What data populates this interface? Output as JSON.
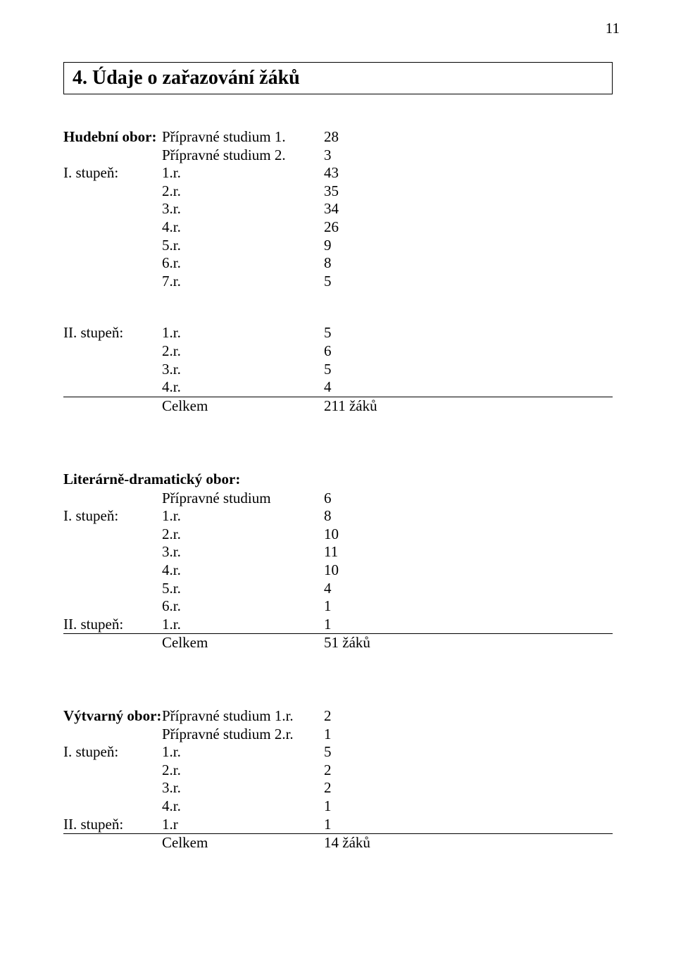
{
  "page_number": "11",
  "title": "4. Údaje o zařazování žáků",
  "sections": [
    {
      "heading_col_a": "Hudební obor:",
      "groups": [
        {
          "rule_before": false,
          "rule_after": false,
          "rows": [
            {
              "a": "",
              "b": "Přípravné studium 1.",
              "c": "28"
            },
            {
              "a": "",
              "b": "Přípravné studium 2.",
              "c": "3"
            },
            {
              "a": "I. stupeň:",
              "b": "1.r.",
              "c": "43"
            },
            {
              "a": "",
              "b": "2.r.",
              "c": "35"
            },
            {
              "a": "",
              "b": "3.r.",
              "c": "34"
            },
            {
              "a": "",
              "b": "4.r.",
              "c": "26"
            },
            {
              "a": "",
              "b": "5.r.",
              "c": "9"
            },
            {
              "a": "",
              "b": "6.r.",
              "c": "8"
            },
            {
              "a": "",
              "b": "7.r.",
              "c": "5"
            }
          ]
        },
        {
          "rule_before": false,
          "rule_after": true,
          "spacer_before": "lg",
          "rows": [
            {
              "a": "II. stupeň:",
              "b": "1.r.",
              "c": "5"
            },
            {
              "a": "",
              "b": "2.r.",
              "c": "6"
            },
            {
              "a": "",
              "b": "3.r.",
              "c": "5"
            },
            {
              "a": "",
              "b": "4.r.",
              "c": "4"
            }
          ]
        },
        {
          "rule_before": false,
          "rule_after": false,
          "rows": [
            {
              "a": "",
              "b": "Celkem",
              "c": "211 žáků"
            }
          ]
        }
      ]
    },
    {
      "heading_col_a": "Literárně-dramatický obor:",
      "heading_full_width": true,
      "spacer_before": "lg",
      "groups": [
        {
          "rule_before": false,
          "rule_after": true,
          "rows": [
            {
              "a": "",
              "b": "Přípravné studium",
              "c": "6"
            },
            {
              "a": "I. stupeň:",
              "b": "1.r.",
              "c": "8"
            },
            {
              "a": "",
              "b": "2.r.",
              "c": "10"
            },
            {
              "a": "",
              "b": "3.r.",
              "c": "11"
            },
            {
              "a": "",
              "b": "4.r.",
              "c": "10"
            },
            {
              "a": "",
              "b": "5.r.",
              "c": "4"
            },
            {
              "a": "",
              "b": "6.r.",
              "c": "1"
            },
            {
              "a": "II. stupeň:",
              "b": "1.r.",
              "c": "1"
            }
          ]
        },
        {
          "rule_before": false,
          "rule_after": false,
          "rows": [
            {
              "a": "",
              "b": "Celkem",
              "c": "51 žáků"
            }
          ]
        }
      ]
    },
    {
      "heading_col_a": "Výtvarný obor:",
      "spacer_before": "lg",
      "groups": [
        {
          "rule_before": false,
          "rule_after": true,
          "rows": [
            {
              "a": "",
              "b": "Přípravné studium 1.r.",
              "c": "2"
            },
            {
              "a": "",
              "b": "Přípravné studium 2.r.",
              "c": "1"
            },
            {
              "a": "I. stupeň:",
              "b": "1.r.",
              "c": "5"
            },
            {
              "a": "",
              "b": "2.r.",
              "c": "2"
            },
            {
              "a": "",
              "b": "3.r.",
              "c": "2"
            },
            {
              "a": "",
              "b": "4.r.",
              "c": "1"
            },
            {
              "a": "II. stupeň:",
              "b": "1.r",
              "c": "1"
            }
          ]
        },
        {
          "rule_before": false,
          "rule_after": false,
          "rows": [
            {
              "a": "",
              "b": "Celkem",
              "c": "14 žáků"
            }
          ]
        }
      ]
    }
  ]
}
